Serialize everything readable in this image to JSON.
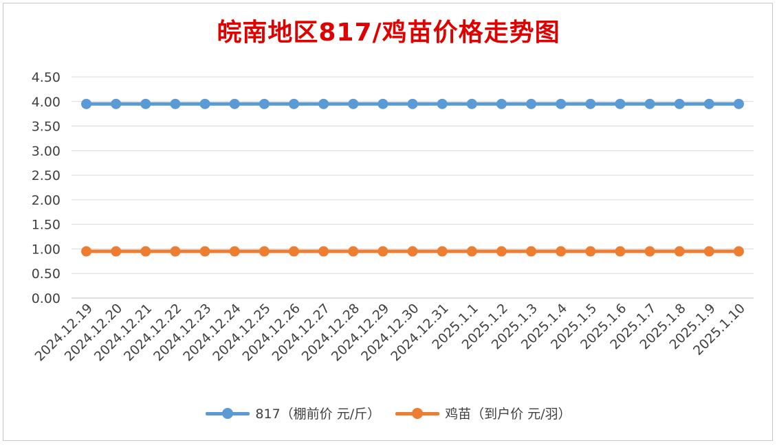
{
  "chart_data": {
    "type": "line",
    "title": "皖南地区817/鸡苗价格走势图",
    "categories": [
      "2024.12.19",
      "2024.12.20",
      "2024.12.21",
      "2024.12.22",
      "2024.12.23",
      "2024.12.24",
      "2024.12.25",
      "2024.12.26",
      "2024.12.27",
      "2024.12.28",
      "2024.12.29",
      "2024.12.30",
      "2024.12.31",
      "2025.1.1",
      "2025.1.2",
      "2025.1.3",
      "2025.1.4",
      "2025.1.5",
      "2025.1.6",
      "2025.1.7",
      "2025.1.8",
      "2025.1.9",
      "2025.1.10"
    ],
    "series": [
      {
        "name": "817（棚前价 元/斤）",
        "color": "#5b9bd5",
        "values": [
          3.95,
          3.95,
          3.95,
          3.95,
          3.95,
          3.95,
          3.95,
          3.95,
          3.95,
          3.95,
          3.95,
          3.95,
          3.95,
          3.95,
          3.95,
          3.95,
          3.95,
          3.95,
          3.95,
          3.95,
          3.95,
          3.95,
          3.95
        ]
      },
      {
        "name": "鸡苗（到户价 元/羽）",
        "color": "#ed7d31",
        "values": [
          0.95,
          0.95,
          0.95,
          0.95,
          0.95,
          0.95,
          0.95,
          0.95,
          0.95,
          0.95,
          0.95,
          0.95,
          0.95,
          0.95,
          0.95,
          0.95,
          0.95,
          0.95,
          0.95,
          0.95,
          0.95,
          0.95,
          0.95
        ]
      }
    ],
    "yticks": [
      "0.00",
      "0.50",
      "1.00",
      "1.50",
      "2.00",
      "2.50",
      "3.00",
      "3.50",
      "4.00",
      "4.50"
    ],
    "ylim": [
      0,
      4.5
    ],
    "grid": true,
    "legend_position": "bottom"
  }
}
